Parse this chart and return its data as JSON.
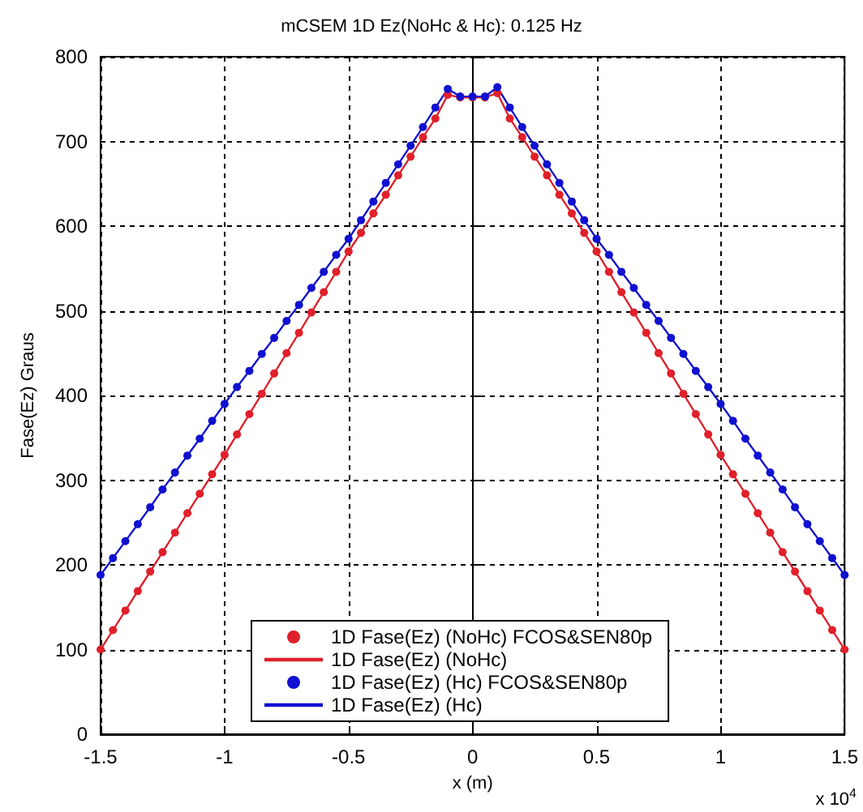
{
  "chart_data": {
    "type": "line",
    "title": "mCSEM 1D Ez(NoHc & Hc): 0.125 Hz",
    "xlabel": "x (m)",
    "ylabel": "Fase(Ez) Graus",
    "x": [
      -1.5,
      -1.45,
      -1.4,
      -1.35,
      -1.3,
      -1.25,
      -1.2,
      -1.15,
      -1.1,
      -1.05,
      -1,
      -0.95,
      -0.9,
      -0.85,
      -0.8,
      -0.75,
      -0.7,
      -0.65,
      -0.6,
      -0.55,
      -0.5,
      -0.45,
      -0.4,
      -0.35,
      -0.3,
      -0.25,
      -0.2,
      -0.15,
      -0.1,
      -0.05,
      0,
      0.05,
      0.1,
      0.15,
      0.2,
      0.25,
      0.3,
      0.35,
      0.4,
      0.45,
      0.5,
      0.55,
      0.6,
      0.65,
      0.7,
      0.75,
      0.8,
      0.85,
      0.9,
      0.95,
      1,
      1.05,
      1.1,
      1.15,
      1.2,
      1.25,
      1.3,
      1.35,
      1.4,
      1.45,
      1.5
    ],
    "series": [
      {
        "name": "1D Fase(Ez) (NoHc) FCOS&SEN80p",
        "color": "#e0202a",
        "marker": "circle",
        "values": [
          100,
          123,
          146,
          169,
          192,
          215,
          238,
          261,
          284,
          307,
          330,
          354,
          378,
          402,
          426,
          450,
          474,
          498,
          522,
          546,
          570,
          592,
          615,
          637,
          660,
          682,
          705,
          727,
          755,
          752,
          752,
          752,
          757,
          727,
          705,
          682,
          660,
          637,
          615,
          592,
          570,
          546,
          522,
          498,
          474,
          450,
          426,
          402,
          378,
          354,
          330,
          307,
          284,
          261,
          238,
          215,
          192,
          169,
          146,
          123,
          100
        ]
      },
      {
        "name": "1D Fase(Ez) (NoHc)",
        "color": "#e0202a",
        "marker": "none",
        "values": [
          100,
          123,
          146,
          169,
          192,
          215,
          238,
          261,
          284,
          307,
          330,
          354,
          378,
          402,
          426,
          450,
          474,
          498,
          522,
          546,
          570,
          592,
          615,
          637,
          660,
          682,
          705,
          727,
          755,
          752,
          752,
          752,
          757,
          727,
          705,
          682,
          660,
          637,
          615,
          592,
          570,
          546,
          522,
          498,
          474,
          450,
          426,
          402,
          378,
          354,
          330,
          307,
          284,
          261,
          238,
          215,
          192,
          169,
          146,
          123,
          100
        ]
      },
      {
        "name": "1D Fase(Ez) (Hc) FCOS&SEN80p",
        "color": "#1010d0",
        "marker": "circle",
        "values": [
          188,
          208,
          228,
          248,
          268,
          289,
          309,
          329,
          349,
          370,
          390,
          410,
          429,
          449,
          468,
          488,
          507,
          527,
          546,
          566,
          585,
          607,
          629,
          651,
          673,
          695,
          717,
          740,
          762,
          753,
          753,
          753,
          764,
          740,
          717,
          695,
          673,
          651,
          629,
          607,
          585,
          566,
          546,
          527,
          507,
          488,
          468,
          449,
          429,
          410,
          390,
          370,
          349,
          329,
          309,
          289,
          268,
          248,
          228,
          208,
          188
        ]
      },
      {
        "name": "1D Fase(Ez) (Hc)",
        "color": "#1010d0",
        "marker": "none",
        "values": [
          188,
          208,
          228,
          248,
          268,
          289,
          309,
          329,
          349,
          370,
          390,
          410,
          429,
          449,
          468,
          488,
          507,
          527,
          546,
          566,
          585,
          607,
          629,
          651,
          673,
          695,
          717,
          740,
          762,
          753,
          753,
          753,
          764,
          740,
          717,
          695,
          673,
          651,
          629,
          607,
          585,
          566,
          546,
          527,
          507,
          488,
          468,
          449,
          429,
          410,
          390,
          370,
          349,
          329,
          309,
          289,
          268,
          248,
          228,
          208,
          188
        ]
      }
    ],
    "xlim": [
      -1.5,
      1.5
    ],
    "xticks": [
      -1.5,
      -1,
      -0.5,
      0,
      0.5,
      1,
      1.5
    ],
    "ylim": [
      0,
      800
    ],
    "yticks": [
      0,
      100,
      200,
      300,
      400,
      500,
      600,
      700,
      800
    ],
    "annotations": [
      "x 10$^{4}$"
    ],
    "grid": true,
    "line_style": "solid",
    "legend": "bottom"
  }
}
